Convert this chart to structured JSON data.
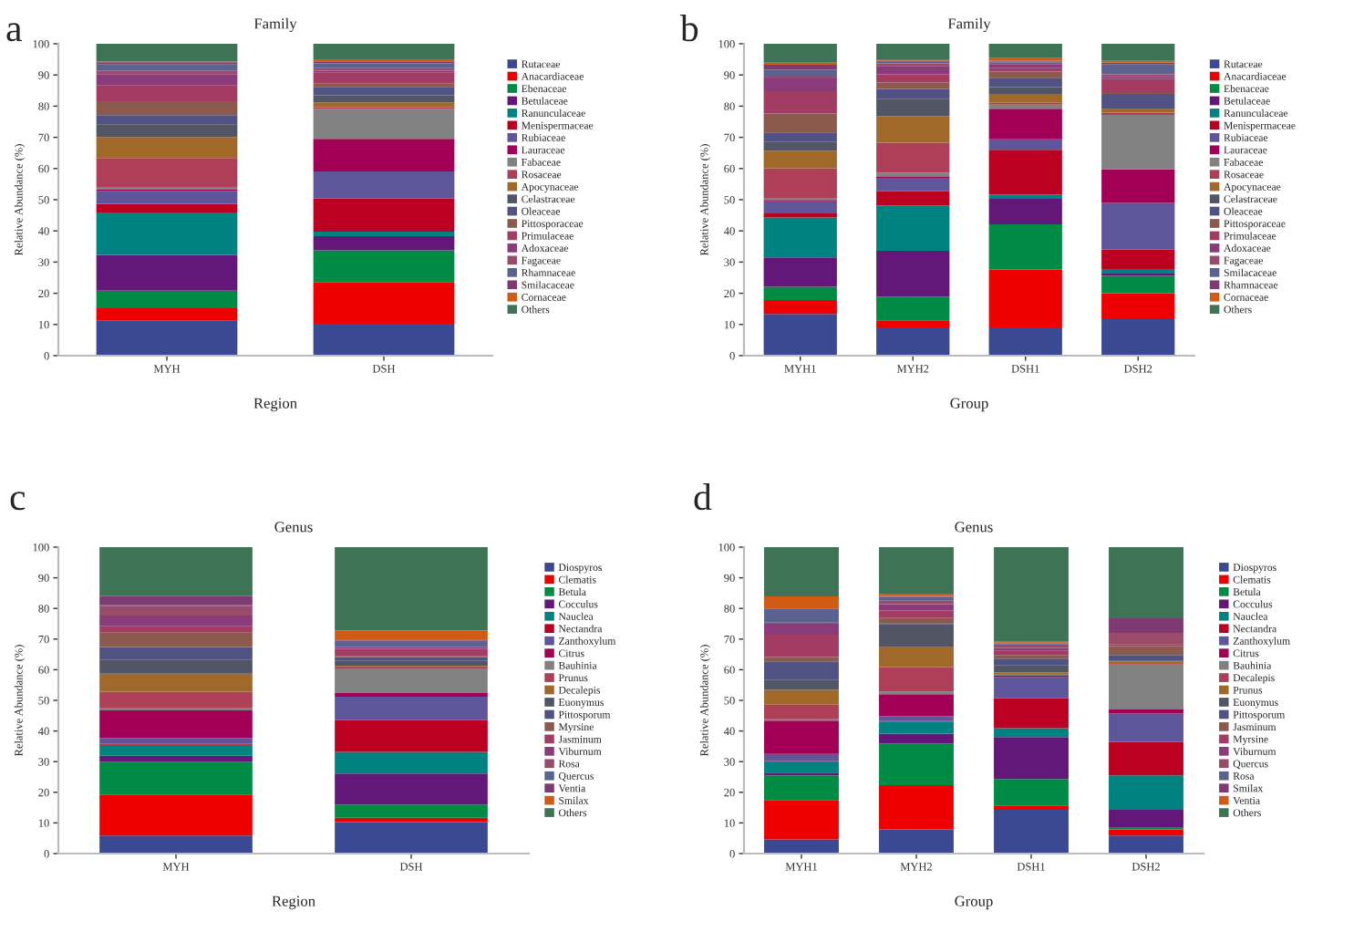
{
  "chart_data": [
    {
      "type": "bar",
      "stacked": true,
      "title": "Family",
      "xlabel": "Region",
      "ylabel": "Relative Abundance (%)",
      "annotations": [
        "a"
      ],
      "legend": "right",
      "ylim": [
        0,
        100
      ],
      "yticks": [
        0,
        10,
        20,
        30,
        40,
        50,
        60,
        70,
        80,
        90,
        100
      ],
      "categories": [
        "MYH",
        "DSH"
      ],
      "series": [
        {
          "name": "Rutaceae",
          "color": "#3b4992",
          "values": [
            11.2,
            10.2
          ]
        },
        {
          "name": "Anacardiaceae",
          "color": "#ee0000",
          "values": [
            4.0,
            13.4
          ]
        },
        {
          "name": "Ebenaceae",
          "color": "#008b45",
          "values": [
            5.6,
            10.2
          ]
        },
        {
          "name": "Betulaceae",
          "color": "#631879",
          "values": [
            11.5,
            4.5
          ]
        },
        {
          "name": "Ranunculaceae",
          "color": "#008280",
          "values": [
            13.6,
            1.5
          ]
        },
        {
          "name": "Menispermaceae",
          "color": "#bb0021",
          "values": [
            2.8,
            10.6
          ]
        },
        {
          "name": "Rubiaceae",
          "color": "#5f559b",
          "values": [
            4.1,
            8.7
          ]
        },
        {
          "name": "Lauraceae",
          "color": "#a20056",
          "values": [
            0.4,
            10.4
          ]
        },
        {
          "name": "Fabaceae",
          "color": "#808180",
          "values": [
            0.7,
            9.7
          ]
        },
        {
          "name": "Rosaceae",
          "color": "#ad3f58",
          "values": [
            9.5,
            0.4
          ]
        },
        {
          "name": "Apocynaceae",
          "color": "#a0692a",
          "values": [
            6.7,
            1.6
          ]
        },
        {
          "name": "Celastraceae",
          "color": "#525664",
          "values": [
            4.1,
            2.3
          ]
        },
        {
          "name": "Oleaceae",
          "color": "#4f5282",
          "values": [
            2.9,
            2.7
          ]
        },
        {
          "name": "Pittosporaceae",
          "color": "#8b5a4c",
          "values": [
            4.5,
            1.0
          ]
        },
        {
          "name": "Primulaceae",
          "color": "#a23c63",
          "values": [
            5.2,
            3.5
          ]
        },
        {
          "name": "Adoxaceae",
          "color": "#8a3b7a",
          "values": [
            3.5,
            0.7
          ]
        },
        {
          "name": "Fagaceae",
          "color": "#9b4b6a",
          "values": [
            1.0,
            0.8
          ]
        },
        {
          "name": "Rhamnaceae",
          "color": "#5b628f",
          "values": [
            2.2,
            1.5
          ]
        },
        {
          "name": "Smilacaceae",
          "color": "#7e3a72",
          "values": [
            0.6,
            0.7
          ]
        },
        {
          "name": "Cornaceae",
          "color": "#d15b14",
          "values": [
            0.3,
            0.6
          ]
        },
        {
          "name": "Others",
          "color": "#3f7355",
          "values": [
            5.6,
            5.0
          ]
        }
      ]
    },
    {
      "type": "bar",
      "stacked": true,
      "title": "Family",
      "xlabel": "Group",
      "ylabel": "Relative Abundance (%)",
      "annotations": [
        "b"
      ],
      "legend": "right",
      "ylim": [
        0,
        100
      ],
      "yticks": [
        0,
        10,
        20,
        30,
        40,
        50,
        60,
        70,
        80,
        90,
        100
      ],
      "categories": [
        "MYH1",
        "MYH2",
        "DSH1",
        "DSH2"
      ],
      "series": [
        {
          "name": "Rutaceae",
          "color": "#3b4992",
          "values": [
            13.4,
            9.1,
            9.1,
            11.7
          ]
        },
        {
          "name": "Anacardiaceae",
          "color": "#ee0000",
          "values": [
            4.4,
            2.2,
            18.5,
            8.3
          ]
        },
        {
          "name": "Ebenaceae",
          "color": "#008b45",
          "values": [
            4.3,
            7.6,
            14.5,
            5.6
          ]
        },
        {
          "name": "Betulaceae",
          "color": "#631879",
          "values": [
            9.4,
            14.7,
            8.2,
            0.7
          ]
        },
        {
          "name": "Ranunculaceae",
          "color": "#008280",
          "values": [
            12.8,
            14.5,
            1.3,
            1.5
          ]
        },
        {
          "name": "Menispermaceae",
          "color": "#bb0021",
          "values": [
            1.3,
            4.6,
            14.4,
            6.3
          ]
        },
        {
          "name": "Rubiaceae",
          "color": "#5f559b",
          "values": [
            3.9,
            4.3,
            3.4,
            14.9
          ]
        },
        {
          "name": "Lauraceae",
          "color": "#a20056",
          "values": [
            0.4,
            0.3,
            9.8,
            10.7
          ]
        },
        {
          "name": "Fabaceae",
          "color": "#808180",
          "values": [
            0.7,
            1.3,
            1.3,
            17.5
          ]
        },
        {
          "name": "Rosaceae",
          "color": "#ad3f58",
          "values": [
            9.5,
            9.7,
            0.6,
            0.7
          ]
        },
        {
          "name": "Apocynaceae",
          "color": "#a0692a",
          "values": [
            5.6,
            8.5,
            2.8,
            1.1
          ]
        },
        {
          "name": "Celastraceae",
          "color": "#525664",
          "values": [
            2.8,
            5.6,
            2.2,
            0.8
          ]
        },
        {
          "name": "Oleaceae",
          "color": "#4f5282",
          "values": [
            3.1,
            3.1,
            3.0,
            4.1
          ]
        },
        {
          "name": "Pittosporaceae",
          "color": "#8b5a4c",
          "values": [
            6.0,
            2.1,
            2.0,
            0.3
          ]
        },
        {
          "name": "Primulaceae",
          "color": "#a23c63",
          "values": [
            7.2,
            2.6,
            1.1,
            4.5
          ]
        },
        {
          "name": "Adoxaceae",
          "color": "#8a3b7a",
          "values": [
            4.1,
            2.7,
            1.3,
            0.7
          ]
        },
        {
          "name": "Fagaceae",
          "color": "#9b4b6a",
          "values": [
            0.9,
            0.8,
            0.4,
            0.8
          ]
        },
        {
          "name": "Smilacaceae",
          "color": "#5b628f",
          "values": [
            1.9,
            0.5,
            0.4,
            3.3
          ]
        },
        {
          "name": "Rhamnaceae",
          "color": "#7e3a72",
          "values": [
            1.6,
            0.4,
            0.3,
            0.4
          ]
        },
        {
          "name": "Cornaceae",
          "color": "#d15b14",
          "values": [
            0.6,
            0.4,
            0.8,
            0.6
          ]
        },
        {
          "name": "Others",
          "color": "#3f7355",
          "values": [
            6.1,
            5.0,
            4.6,
            5.5
          ]
        }
      ]
    },
    {
      "type": "bar",
      "stacked": true,
      "title": "Genus",
      "xlabel": "Region",
      "ylabel": "Relative Abundance (%)",
      "annotations": [
        "c"
      ],
      "legend": "right",
      "ylim": [
        0,
        100
      ],
      "yticks": [
        0,
        10,
        20,
        30,
        40,
        50,
        60,
        70,
        80,
        90,
        100
      ],
      "categories": [
        "MYH",
        "DSH"
      ],
      "series": [
        {
          "name": "Diospyros",
          "color": "#3b4992",
          "values": [
            5.9,
            10.3
          ]
        },
        {
          "name": "Clematis",
          "color": "#ee0000",
          "values": [
            13.4,
            1.4
          ]
        },
        {
          "name": "Betula",
          "color": "#008b45",
          "values": [
            10.6,
            4.3
          ]
        },
        {
          "name": "Cocculus",
          "color": "#631879",
          "values": [
            2.0,
            10.1
          ]
        },
        {
          "name": "Nauclea",
          "color": "#008280",
          "values": [
            3.6,
            7.1
          ]
        },
        {
          "name": "Nectandra",
          "color": "#bb0021",
          "values": [
            0.3,
            10.4
          ]
        },
        {
          "name": "Zanthoxylum",
          "color": "#5f559b",
          "values": [
            1.9,
            7.6
          ]
        },
        {
          "name": "Citrus",
          "color": "#a20056",
          "values": [
            9.0,
            1.2
          ]
        },
        {
          "name": "Bauhinia",
          "color": "#808180",
          "values": [
            0.7,
            7.8
          ]
        },
        {
          "name": "Prunus",
          "color": "#ad3f58",
          "values": [
            5.4,
            0.5
          ]
        },
        {
          "name": "Decalepis",
          "color": "#a0692a",
          "values": [
            5.9,
            0.5
          ]
        },
        {
          "name": "Euonymus",
          "color": "#525664",
          "values": [
            4.5,
            1.7
          ]
        },
        {
          "name": "Pittosporum",
          "color": "#4f5282",
          "values": [
            4.2,
            1.2
          ]
        },
        {
          "name": "Myrsine",
          "color": "#8b5a4c",
          "values": [
            4.7,
            0.4
          ]
        },
        {
          "name": "Jasminum",
          "color": "#a23c63",
          "values": [
            2.1,
            2.3
          ]
        },
        {
          "name": "Viburnum",
          "color": "#8a3b7a",
          "values": [
            3.5,
            0.6
          ]
        },
        {
          "name": "Rosa",
          "color": "#9b4b6a",
          "values": [
            3.2,
            0
          ]
        },
        {
          "name": "Quercus",
          "color": "#5b628f",
          "values": [
            0.3,
            2.1
          ]
        },
        {
          "name": "Ventia",
          "color": "#7e3a72",
          "values": [
            2.8,
            0.4
          ]
        },
        {
          "name": "Smilax",
          "color": "#d15b14",
          "values": [
            0,
            2.9
          ]
        },
        {
          "name": "Others",
          "color": "#3f7355",
          "values": [
            16.0,
            27.2
          ]
        }
      ]
    },
    {
      "type": "bar",
      "stacked": true,
      "title": "Genus",
      "xlabel": "Group",
      "ylabel": "Relative Abundance (%)",
      "annotations": [
        "d"
      ],
      "legend": "right",
      "ylim": [
        0,
        100
      ],
      "yticks": [
        0,
        10,
        20,
        30,
        40,
        50,
        60,
        70,
        80,
        90,
        100
      ],
      "categories": [
        "MYH1",
        "MYH2",
        "DSH1",
        "DSH2"
      ],
      "series": [
        {
          "name": "Diospyros",
          "color": "#3b4992",
          "values": [
            4.6,
            7.9,
            14.3,
            5.9
          ]
        },
        {
          "name": "Clematis",
          "color": "#ee0000",
          "values": [
            12.9,
            14.4,
            1.4,
            2.0
          ]
        },
        {
          "name": "Betula",
          "color": "#008b45",
          "values": [
            8.0,
            13.6,
            8.6,
            0.5
          ]
        },
        {
          "name": "Cocculus",
          "color": "#631879",
          "values": [
            0.9,
            3.2,
            13.7,
            5.9
          ]
        },
        {
          "name": "Nauclea",
          "color": "#008280",
          "values": [
            3.4,
            3.9,
            2.9,
            11.2
          ]
        },
        {
          "name": "Nectandra",
          "color": "#bb0021",
          "values": [
            0.4,
            0.2,
            9.8,
            10.9
          ]
        },
        {
          "name": "Zanthoxylum",
          "color": "#5f559b",
          "values": [
            2.3,
            1.6,
            7.0,
            9.3
          ]
        },
        {
          "name": "Citrus",
          "color": "#a20056",
          "values": [
            10.9,
            7.2,
            0.3,
            1.3
          ]
        },
        {
          "name": "Bauhinia",
          "color": "#808180",
          "values": [
            0.4,
            0.9,
            0.4,
            14.4
          ]
        },
        {
          "name": "Decalepis",
          "color": "#ad3f58",
          "values": [
            4.8,
            8.0,
            0.2,
            0.4
          ]
        },
        {
          "name": "Prunus",
          "color": "#a0692a",
          "values": [
            4.8,
            6.4,
            0.5,
            0.9
          ]
        },
        {
          "name": "Euonymus",
          "color": "#525664",
          "values": [
            3.2,
            7.5,
            2.3,
            0.3
          ]
        },
        {
          "name": "Pittosporum",
          "color": "#4f5282",
          "values": [
            6.1,
            0.4,
            2.2,
            1.8
          ]
        },
        {
          "name": "Jasminum",
          "color": "#8b5a4c",
          "values": [
            1.4,
            1.8,
            1.2,
            2.9
          ]
        },
        {
          "name": "Myrsine",
          "color": "#a23c63",
          "values": [
            7.3,
            2.3,
            1.5,
            0.7
          ]
        },
        {
          "name": "Viburnum",
          "color": "#8a3b7a",
          "values": [
            3.6,
            2.1,
            0.8,
            0
          ]
        },
        {
          "name": "Quercus",
          "color": "#9b4b6a",
          "values": [
            0.4,
            1.1,
            1.1,
            3.6
          ]
        },
        {
          "name": "Rosa",
          "color": "#5b628f",
          "values": [
            4.6,
            1.3,
            0.4,
            0
          ]
        },
        {
          "name": "Smilax",
          "color": "#7e3a72",
          "values": [
            0,
            0.3,
            0.2,
            4.8
          ]
        },
        {
          "name": "Ventia",
          "color": "#d15b14",
          "values": [
            3.9,
            0.7,
            0.3,
            0
          ]
        },
        {
          "name": "Others",
          "color": "#3f7355",
          "values": [
            16.1,
            15.2,
            30.9,
            23.2
          ]
        }
      ]
    }
  ]
}
